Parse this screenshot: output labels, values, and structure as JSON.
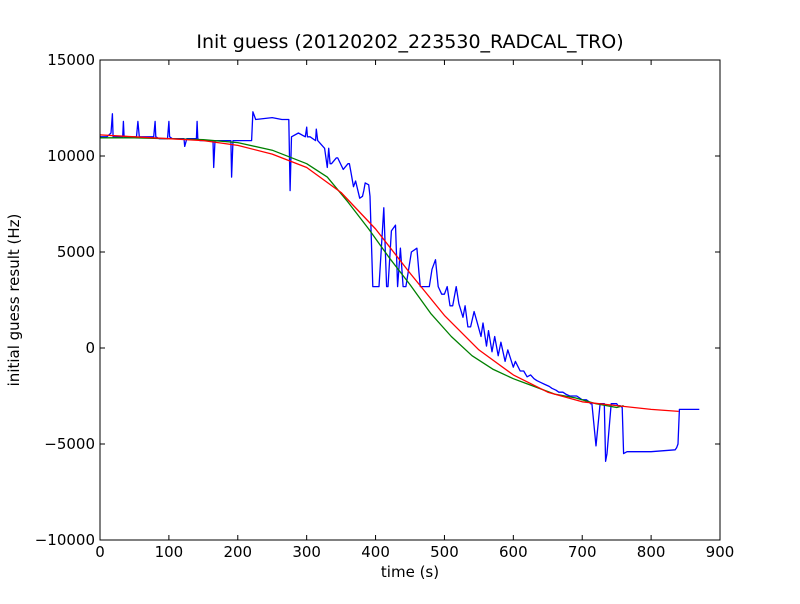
{
  "chart_data": {
    "type": "line",
    "title": "Init guess (20120202_223530_RADCAL_TRO)",
    "xlabel": "time (s)",
    "ylabel": "initial guess result (Hz)",
    "xlim": [
      0,
      900
    ],
    "ylim": [
      -10000,
      15000
    ],
    "xticks": [
      0,
      100,
      200,
      300,
      400,
      500,
      600,
      700,
      800,
      900
    ],
    "yticks": [
      -10000,
      -5000,
      0,
      5000,
      10000,
      15000
    ],
    "xtick_labels": [
      "0",
      "100",
      "200",
      "300",
      "400",
      "500",
      "600",
      "700",
      "800",
      "900"
    ],
    "ytick_labels": [
      "−10000",
      "−5000",
      "0",
      "5000",
      "10000",
      "15000"
    ],
    "grid": false,
    "legend": "none",
    "series": [
      {
        "color": "#0000ff",
        "x": [
          0,
          10,
          16,
          18,
          19,
          21,
          25,
          33,
          34,
          35,
          41,
          45,
          53,
          55,
          57,
          59,
          70,
          78,
          80,
          81,
          86,
          98,
          100,
          101,
          105,
          122,
          123,
          126,
          135,
          140,
          141,
          142,
          145,
          158,
          164,
          165,
          167,
          180,
          190,
          191,
          193,
          210,
          220,
          222,
          226,
          250,
          264,
          274,
          276,
          278,
          288,
          298,
          300,
          301,
          305,
          313,
          314,
          316,
          326,
          330,
          332,
          334,
          336,
          343,
          345,
          353,
          360,
          362,
          364,
          368,
          371,
          377,
          381,
          383,
          385,
          390,
          392,
          396,
          398,
          403,
          405,
          412,
          416,
          418,
          423,
          429,
          432,
          436,
          440,
          442,
          444,
          452,
          460,
          463,
          465,
          470,
          478,
          482,
          487,
          491,
          496,
          500,
          504,
          508,
          512,
          517,
          521,
          527,
          530,
          534,
          538,
          543,
          547,
          553,
          556,
          561,
          564,
          569,
          573,
          578,
          582,
          588,
          592,
          600,
          603,
          610,
          615,
          620,
          625,
          630,
          634,
          640,
          646,
          652,
          656,
          662,
          666,
          672,
          676,
          682,
          686,
          692,
          696,
          700,
          706,
          710,
          712,
          714,
          720,
          726,
          730,
          732,
          734,
          736,
          742,
          750,
          752,
          755,
          758,
          760,
          765,
          800,
          835,
          837,
          839,
          841,
          843,
          870
        ],
        "values": [
          11000,
          11000,
          11200,
          12200,
          11000,
          11000,
          11000,
          11000,
          11800,
          11000,
          11000,
          11000,
          11000,
          11800,
          11000,
          11000,
          11000,
          11000,
          11800,
          11000,
          10900,
          10900,
          11800,
          11000,
          10900,
          10900,
          10500,
          10900,
          10900,
          10900,
          11800,
          10900,
          10800,
          10800,
          10800,
          9400,
          10800,
          10800,
          10800,
          8900,
          10800,
          10800,
          10800,
          12300,
          11900,
          12000,
          11900,
          11900,
          8200,
          11000,
          11200,
          11000,
          11500,
          11000,
          11000,
          10800,
          11400,
          10800,
          10400,
          9400,
          10400,
          9600,
          9600,
          9900,
          9900,
          9300,
          9600,
          9600,
          9200,
          8400,
          8700,
          7800,
          7900,
          8200,
          8600,
          8500,
          7900,
          3200,
          3200,
          3200,
          3200,
          7300,
          3200,
          3200,
          6100,
          6400,
          3200,
          5200,
          3200,
          3200,
          3200,
          5000,
          5200,
          3900,
          3200,
          3200,
          3200,
          4100,
          4600,
          3200,
          2800,
          2800,
          3200,
          2200,
          2200,
          3200,
          2300,
          1600,
          2200,
          1100,
          1100,
          1900,
          1400,
          600,
          1300,
          100,
          900,
          -200,
          600,
          -400,
          300,
          -700,
          -100,
          -1000,
          -700,
          -1200,
          -1200,
          -1500,
          -1400,
          -1600,
          -1700,
          -1800,
          -1900,
          -2000,
          -2100,
          -2200,
          -2300,
          -2300,
          -2400,
          -2500,
          -2500,
          -2500,
          -2600,
          -2700,
          -2700,
          -2800,
          -2900,
          -2900,
          -5100,
          -2900,
          -2900,
          -2900,
          -5900,
          -5500,
          -2900,
          -2900,
          -3000,
          -3000,
          -3100,
          -5500,
          -5400,
          -5400,
          -5300,
          -5200,
          -5000,
          -3200,
          -3200,
          -3200
        ]
      },
      {
        "color": "#008000",
        "x": [
          0,
          50,
          100,
          150,
          200,
          250,
          300,
          330,
          360,
          390,
          420,
          450,
          480,
          510,
          540,
          570,
          600,
          630,
          660,
          690,
          720,
          750,
          760
        ],
        "values": [
          10950,
          10950,
          10900,
          10850,
          10700,
          10300,
          9600,
          8900,
          7600,
          6200,
          4700,
          3300,
          1800,
          600,
          -400,
          -1100,
          -1600,
          -2000,
          -2400,
          -2600,
          -2900,
          -3100,
          -3000
        ]
      },
      {
        "color": "#ff0000",
        "x": [
          0,
          50,
          100,
          150,
          200,
          250,
          300,
          350,
          400,
          450,
          500,
          550,
          600,
          650,
          700,
          750,
          800,
          840
        ],
        "values": [
          11100,
          11000,
          10900,
          10800,
          10550,
          10100,
          9400,
          8100,
          6200,
          3900,
          1700,
          -100,
          -1400,
          -2300,
          -2800,
          -3000,
          -3200,
          -3300
        ]
      }
    ]
  }
}
